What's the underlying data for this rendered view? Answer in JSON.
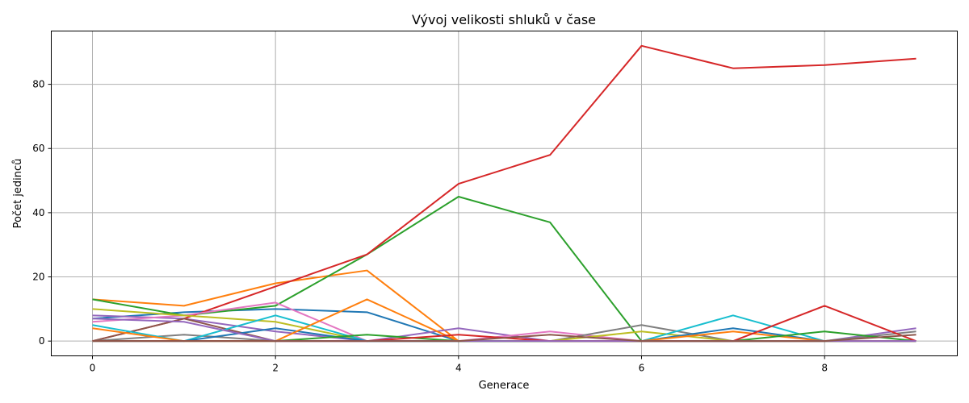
{
  "chart_data": {
    "type": "line",
    "title": "Vývoj velikosti shluků v čase",
    "xlabel": "Generace",
    "ylabel": "Počet jedinců",
    "xlim": [
      -0.45,
      9.45
    ],
    "ylim": [
      -4.6,
      96.6
    ],
    "xticks": [
      0,
      2,
      4,
      6,
      8
    ],
    "yticks": [
      0,
      20,
      40,
      60,
      80
    ],
    "grid": true,
    "x": [
      0,
      1,
      2,
      3,
      4,
      5,
      6,
      7,
      8,
      9
    ],
    "series": [
      {
        "color": "#1f77b4",
        "values": [
          7,
          9,
          10,
          9,
          0,
          0,
          0,
          0,
          0,
          0
        ]
      },
      {
        "color": "#ff7f0e",
        "values": [
          13,
          11,
          18,
          22,
          0,
          0,
          0,
          0,
          0,
          0
        ]
      },
      {
        "color": "#2ca02c",
        "values": [
          13,
          8,
          11,
          27,
          45,
          37,
          0,
          0,
          0,
          0
        ]
      },
      {
        "color": "#d62728",
        "values": [
          0,
          7,
          17,
          27,
          49,
          58,
          92,
          85,
          86,
          88
        ]
      },
      {
        "color": "#9467bd",
        "values": [
          8,
          7,
          3,
          0,
          4,
          0,
          0,
          0,
          0,
          4
        ]
      },
      {
        "color": "#8c564b",
        "values": [
          0,
          7,
          0,
          0,
          0,
          0,
          0,
          0,
          0,
          0
        ]
      },
      {
        "color": "#e377c2",
        "values": [
          6,
          8,
          12,
          0,
          0,
          3,
          0,
          0,
          0,
          0
        ]
      },
      {
        "color": "#7f7f7f",
        "values": [
          0,
          2,
          0,
          0,
          0,
          0,
          5,
          0,
          0,
          3
        ]
      },
      {
        "color": "#bcbd22",
        "values": [
          10,
          8,
          6,
          0,
          0,
          0,
          3,
          0,
          0,
          0
        ]
      },
      {
        "color": "#17becf",
        "values": [
          5,
          0,
          8,
          0,
          0,
          0,
          0,
          8,
          0,
          0
        ]
      },
      {
        "color": "#1f77b4",
        "values": [
          0,
          0,
          4,
          0,
          0,
          0,
          0,
          4,
          0,
          0
        ]
      },
      {
        "color": "#ff7f0e",
        "values": [
          4,
          0,
          0,
          13,
          0,
          0,
          0,
          3,
          0,
          0
        ]
      },
      {
        "color": "#2ca02c",
        "values": [
          0,
          0,
          0,
          2,
          0,
          0,
          0,
          0,
          3,
          0
        ]
      },
      {
        "color": "#d62728",
        "values": [
          0,
          0,
          0,
          0,
          2,
          0,
          0,
          0,
          11,
          0
        ]
      },
      {
        "color": "#9467bd",
        "values": [
          7,
          6,
          0,
          0,
          0,
          0,
          0,
          0,
          0,
          0
        ]
      },
      {
        "color": "#8c564b",
        "values": [
          0,
          0,
          0,
          0,
          0,
          2,
          0,
          0,
          0,
          2
        ]
      }
    ]
  }
}
